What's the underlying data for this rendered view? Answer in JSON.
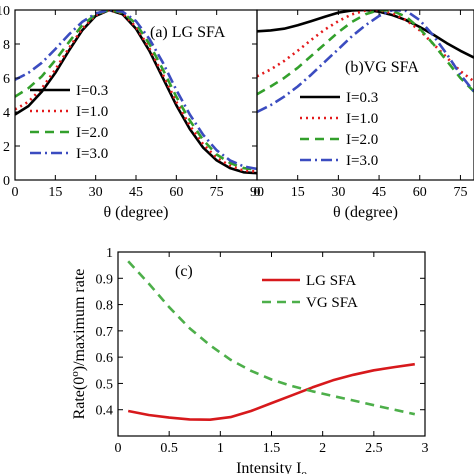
{
  "chart_data": [
    {
      "type": "line",
      "panel_label": "(a) LG SFA",
      "xlabel": "θ (degree)",
      "ylabel": "",
      "xlim": [
        0,
        90
      ],
      "ylim": [
        0,
        10
      ],
      "xticks": [
        "0",
        "15",
        "30",
        "45",
        "60",
        "75",
        "90"
      ],
      "yticks": [
        "0",
        "2",
        "4",
        "6",
        "8",
        "10"
      ],
      "legend_position": "left",
      "series": [
        {
          "name": "I=0.3",
          "color": "#000000",
          "style": "solid",
          "x": [
            0,
            5,
            10,
            15,
            20,
            25,
            30,
            35,
            40,
            45,
            50,
            55,
            60,
            65,
            70,
            75,
            80,
            85,
            90
          ],
          "y": [
            3.85,
            4.35,
            5.2,
            6.3,
            7.6,
            8.8,
            9.65,
            10.0,
            9.75,
            8.9,
            7.6,
            6.0,
            4.4,
            3.0,
            1.9,
            1.15,
            0.7,
            0.45,
            0.4
          ]
        },
        {
          "name": "I=1.0",
          "color": "#e31a1c",
          "style": "dotted",
          "x": [
            0,
            5,
            10,
            15,
            20,
            25,
            30,
            35,
            40,
            45,
            50,
            55,
            60,
            65,
            70,
            75,
            80,
            85,
            90
          ],
          "y": [
            4.15,
            4.6,
            5.4,
            6.5,
            7.75,
            8.9,
            9.7,
            10.0,
            9.8,
            9.0,
            7.75,
            6.2,
            4.6,
            3.2,
            2.1,
            1.3,
            0.85,
            0.55,
            0.5
          ]
        },
        {
          "name": "I=2.0",
          "color": "#33a02c",
          "style": "dashed",
          "x": [
            0,
            5,
            10,
            15,
            20,
            25,
            30,
            35,
            40,
            45,
            50,
            55,
            60,
            65,
            70,
            75,
            80,
            85,
            90
          ],
          "y": [
            4.9,
            5.4,
            6.1,
            7.05,
            8.1,
            9.1,
            9.75,
            10.0,
            9.85,
            9.2,
            8.0,
            6.5,
            4.9,
            3.5,
            2.35,
            1.5,
            1.0,
            0.7,
            0.6
          ]
        },
        {
          "name": "I=3.0",
          "color": "#3b4cc0",
          "style": "dashdot",
          "x": [
            0,
            5,
            10,
            15,
            20,
            25,
            30,
            35,
            40,
            45,
            50,
            55,
            60,
            65,
            70,
            75,
            80,
            85,
            90
          ],
          "y": [
            5.9,
            6.3,
            6.9,
            7.7,
            8.55,
            9.3,
            9.8,
            10.0,
            9.9,
            9.35,
            8.3,
            6.9,
            5.3,
            3.85,
            2.65,
            1.75,
            1.15,
            0.8,
            0.65
          ]
        }
      ]
    },
    {
      "type": "line",
      "panel_label": "(b)VG SFA",
      "xlabel": "θ (degree)",
      "ylabel": "",
      "xlim": [
        0,
        80
      ],
      "ylim": [
        0,
        10
      ],
      "xticks": [
        "0",
        "15",
        "30",
        "45",
        "60",
        "75"
      ],
      "yticks": [],
      "legend_position": "right",
      "series": [
        {
          "name": "I=0.3",
          "color": "#000000",
          "style": "solid",
          "x": [
            0,
            5,
            10,
            15,
            20,
            25,
            30,
            35,
            40,
            45,
            50,
            55,
            60,
            65,
            70,
            75,
            80
          ],
          "y": [
            8.75,
            8.8,
            8.9,
            9.1,
            9.35,
            9.6,
            9.85,
            9.97,
            10.0,
            9.9,
            9.7,
            9.4,
            9.0,
            8.55,
            8.05,
            7.6,
            7.2
          ]
        },
        {
          "name": "I=1.0",
          "color": "#e31a1c",
          "style": "dotted",
          "x": [
            0,
            5,
            10,
            15,
            20,
            25,
            30,
            35,
            40,
            45,
            50,
            55,
            60,
            65,
            70,
            75,
            80
          ],
          "y": [
            6.1,
            6.5,
            7.0,
            7.6,
            8.25,
            8.85,
            9.35,
            9.75,
            9.97,
            10.0,
            9.8,
            9.4,
            8.8,
            8.0,
            7.2,
            6.4,
            5.8
          ]
        },
        {
          "name": "I=2.0",
          "color": "#33a02c",
          "style": "dashed",
          "x": [
            0,
            5,
            10,
            15,
            20,
            25,
            30,
            35,
            40,
            45,
            50,
            55,
            60,
            65,
            70,
            75,
            80
          ],
          "y": [
            5.05,
            5.5,
            6.0,
            6.6,
            7.3,
            8.0,
            8.7,
            9.3,
            9.75,
            10.0,
            9.95,
            9.6,
            8.9,
            8.0,
            7.0,
            6.0,
            5.2
          ]
        },
        {
          "name": "I=3.0",
          "color": "#3b4cc0",
          "style": "dashdot",
          "x": [
            0,
            5,
            10,
            15,
            20,
            25,
            30,
            35,
            40,
            45,
            50,
            55,
            60,
            65,
            70,
            75,
            80
          ],
          "y": [
            4.0,
            4.4,
            4.9,
            5.5,
            6.2,
            6.95,
            7.7,
            8.45,
            9.1,
            9.65,
            10.0,
            9.95,
            9.4,
            8.5,
            7.4,
            6.2,
            5.2
          ]
        }
      ]
    },
    {
      "type": "line",
      "panel_label": "(c)",
      "xlabel": "Intensity I",
      "xlabel_sub": "o",
      "ylabel": "Rate(0",
      "ylabel_sup": "o",
      "ylabel_tail": ")/maximum rate",
      "xlim": [
        0,
        3
      ],
      "ylim": [
        0.3,
        1.0
      ],
      "xticks": [
        "0",
        "0.5",
        "1",
        "1.5",
        "2",
        "2.5",
        "3"
      ],
      "yticks": [
        "0.4",
        "0.5",
        "0.6",
        "0.7",
        "0.8",
        "0.9",
        "1"
      ],
      "legend_position": "top-right",
      "series": [
        {
          "name": "LG SFA",
          "color": "#d7191c",
          "style": "solid",
          "x": [
            0.1,
            0.3,
            0.5,
            0.7,
            0.9,
            1.1,
            1.3,
            1.5,
            1.7,
            1.9,
            2.1,
            2.3,
            2.5,
            2.7,
            2.9
          ],
          "y": [
            0.395,
            0.38,
            0.37,
            0.363,
            0.362,
            0.372,
            0.395,
            0.425,
            0.455,
            0.485,
            0.512,
            0.533,
            0.55,
            0.562,
            0.573
          ]
        },
        {
          "name": "VG SFA",
          "color": "#4daf4a",
          "style": "dashed",
          "x": [
            0.1,
            0.3,
            0.5,
            0.7,
            0.9,
            1.1,
            1.3,
            1.5,
            1.7,
            1.9,
            2.1,
            2.3,
            2.5,
            2.7,
            2.9
          ],
          "y": [
            0.965,
            0.88,
            0.79,
            0.71,
            0.645,
            0.59,
            0.548,
            0.515,
            0.49,
            0.47,
            0.452,
            0.435,
            0.417,
            0.4,
            0.383
          ]
        }
      ]
    }
  ]
}
